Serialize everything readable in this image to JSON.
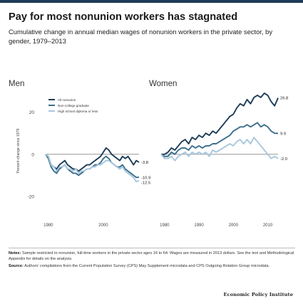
{
  "title": "Pay for most nonunion workers has stagnated",
  "subtitle": "Cumulative change in annual median wages of nonunion workers in the private sector, by gender, 1979–2013",
  "notes": {
    "notes_label": "Notes:",
    "notes_text": "Sample restricted to nonunion, full-time workers in the private sector ages 16 to 64. Wages are measured in 2013 dollars. See the text and Methodological Appendix for details on the analysis.",
    "source_label": "Source:",
    "source_text": "Authors' compilations from the Current Population Survey (CPS) May Supplement microdata and CPS Outgoing Rotation Group microdata."
  },
  "footer": {
    "brand": "Economic Policy Institute"
  },
  "colors": {
    "all_nonunion": "#1d3c57",
    "non_college": "#3b6e8c",
    "high_school": "#a7c7dd",
    "zero_line": "#888888",
    "topbar": "#1d3c57"
  },
  "chart_data": [
    {
      "type": "line",
      "title": "Men",
      "ylabel": "Percent change since 1979",
      "ylim": [
        -20,
        30
      ],
      "yticks": [
        -20,
        0,
        20
      ],
      "xlim": [
        1979,
        2013
      ],
      "xticks": [
        1980,
        2000
      ],
      "legend_position": "top-left",
      "x": [
        1979,
        1980,
        1981,
        1982,
        1983,
        1984,
        1985,
        1986,
        1987,
        1988,
        1989,
        1990,
        1991,
        1992,
        1993,
        1994,
        1995,
        1996,
        1997,
        1998,
        1999,
        2000,
        2001,
        2002,
        2003,
        2004,
        2005,
        2006,
        2007,
        2008,
        2009,
        2010,
        2011,
        2012,
        2013
      ],
      "series": [
        {
          "name": "All nonunion",
          "end_label": "-3.8",
          "values": [
            0,
            -1,
            -5,
            -6,
            -7,
            -5,
            -4,
            -3,
            -5,
            -6,
            -7,
            -7,
            -8,
            -7,
            -6,
            -5,
            -5,
            -4,
            -3,
            -2,
            -1,
            1,
            3,
            2,
            0,
            -1,
            -2,
            -3,
            -1,
            -2,
            -1,
            -3,
            -5,
            -3,
            -3.8
          ]
        },
        {
          "name": "Non-college graduate",
          "end_label": "-10.9",
          "values": [
            0,
            -2,
            -6,
            -8,
            -9,
            -7,
            -6,
            -5,
            -7,
            -8,
            -9,
            -9,
            -10,
            -9,
            -8,
            -7,
            -7,
            -6,
            -5,
            -5,
            -4,
            -2,
            -1,
            -2,
            -4,
            -5,
            -6,
            -6,
            -5,
            -7,
            -8,
            -9,
            -10,
            -11,
            -10.9
          ]
        },
        {
          "name": "High school diploma or less",
          "end_label": "-12.5",
          "values": [
            0,
            -1,
            -5,
            -6,
            -8,
            -6,
            -6,
            -5,
            -7,
            -7,
            -8,
            -7,
            -9,
            -8,
            -8,
            -7,
            -7,
            -6,
            -6,
            -5,
            -5,
            -4,
            -3,
            -3,
            -4,
            -5,
            -6,
            -7,
            -6,
            -8,
            -9,
            -10,
            -11,
            -13,
            -12.5
          ]
        }
      ]
    },
    {
      "type": "line",
      "title": "Women",
      "ylim": [
        -20,
        30
      ],
      "xlim": [
        1979,
        2013
      ],
      "xticks": [
        1980,
        1990,
        2000,
        2010
      ],
      "x": [
        1979,
        1980,
        1981,
        1982,
        1983,
        1984,
        1985,
        1986,
        1987,
        1988,
        1989,
        1990,
        1991,
        1992,
        1993,
        1994,
        1995,
        1996,
        1997,
        1998,
        1999,
        2000,
        2001,
        2002,
        2003,
        2004,
        2005,
        2006,
        2007,
        2008,
        2009,
        2010,
        2011,
        2012,
        2013
      ],
      "series": [
        {
          "name": "All nonunion",
          "end_label": "26.8",
          "values": [
            0,
            0,
            1,
            3,
            2,
            4,
            6,
            7,
            5,
            8,
            7,
            9,
            8,
            10,
            9,
            11,
            10,
            12,
            14,
            16,
            18,
            19,
            22,
            24,
            23,
            26,
            24,
            27,
            28,
            27,
            29,
            28,
            25,
            23,
            26.8
          ]
        },
        {
          "name": "Non-college graduate",
          "end_label": "9.9",
          "values": [
            0,
            -1,
            -1,
            1,
            0,
            2,
            3,
            3,
            2,
            4,
            3,
            4,
            3,
            4,
            4,
            5,
            5,
            6,
            7,
            8,
            9,
            11,
            12,
            13,
            13,
            14,
            13,
            14,
            15,
            13,
            14,
            13,
            11,
            10,
            9.9
          ]
        },
        {
          "name": "High school diploma or less",
          "end_label": "-2.0",
          "values": [
            0,
            -2,
            -2,
            -1,
            -3,
            -1,
            0,
            1,
            -1,
            1,
            0,
            1,
            0,
            1,
            -1,
            2,
            1,
            2,
            3,
            4,
            5,
            4,
            6,
            7,
            5,
            7,
            5,
            8,
            6,
            4,
            2,
            0,
            -2,
            -1,
            -2.0
          ]
        }
      ]
    }
  ]
}
